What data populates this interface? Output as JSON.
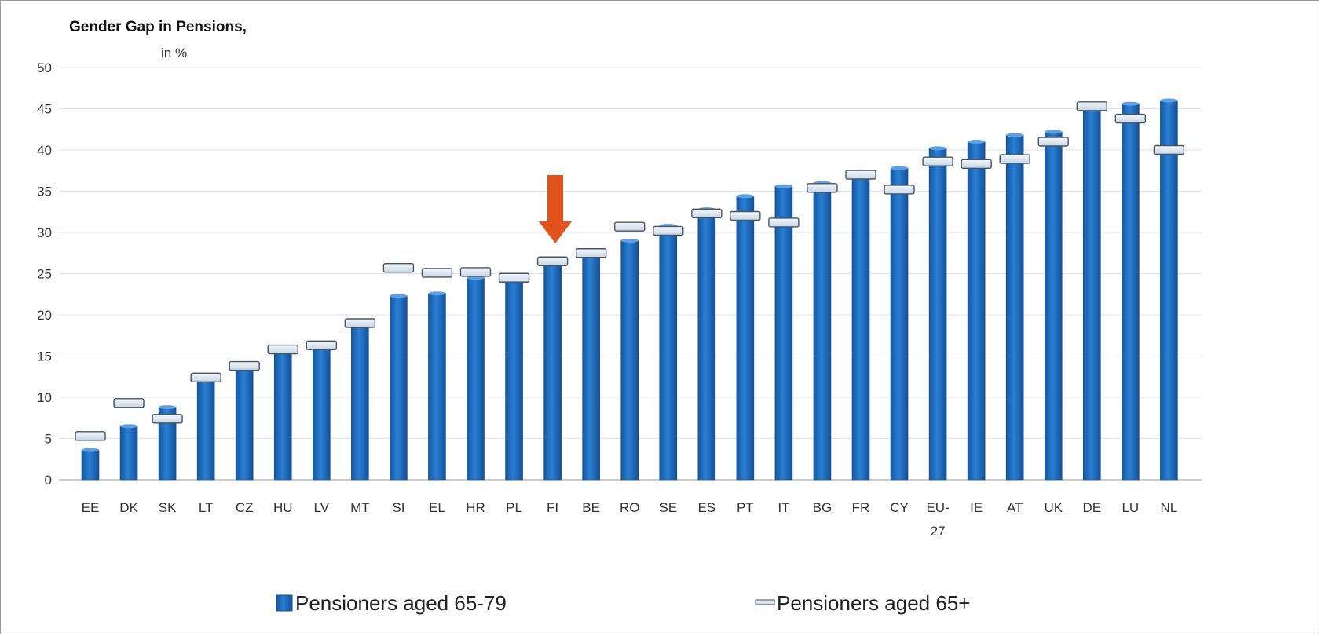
{
  "chart_data": {
    "type": "bar",
    "title": "Gender Gap in Pensions,",
    "ylabel": "in %",
    "ylim": [
      0,
      50
    ],
    "yticks": [
      0,
      5,
      10,
      15,
      20,
      25,
      30,
      35,
      40,
      45,
      50
    ],
    "grid": true,
    "legend_position": "bottom",
    "categories": [
      "EE",
      "DK",
      "SK",
      "LT",
      "CZ",
      "HU",
      "LV",
      "MT",
      "SI",
      "EL",
      "HR",
      "PL",
      "FI",
      "BE",
      "RO",
      "SE",
      "ES",
      "PT",
      "IT",
      "BG",
      "FR",
      "CY",
      "EU-27",
      "IE",
      "AT",
      "UK",
      "DE",
      "LU",
      "NL"
    ],
    "series": [
      {
        "name": "Pensioners aged 65-79",
        "type": "bar",
        "color": "#1f6fbf",
        "values": [
          3.6,
          6.5,
          8.8,
          12.2,
          14.0,
          15.7,
          16.3,
          19.0,
          22.3,
          22.6,
          24.5,
          24.6,
          26.6,
          27.6,
          29.0,
          30.8,
          32.8,
          34.4,
          35.6,
          36.0,
          37.4,
          37.8,
          40.2,
          41.0,
          41.8,
          42.2,
          45.5,
          45.6,
          46.0
        ]
      },
      {
        "name": "Pensioners aged 65+",
        "type": "marker",
        "color": "#dde8f4",
        "values": [
          5.3,
          9.3,
          7.4,
          12.4,
          13.8,
          15.8,
          16.3,
          19.0,
          25.7,
          25.1,
          25.2,
          24.5,
          26.5,
          27.5,
          30.7,
          30.2,
          32.3,
          32.0,
          31.2,
          35.4,
          37.0,
          35.2,
          38.6,
          38.3,
          38.9,
          41.0,
          45.3,
          43.8,
          40.0
        ]
      }
    ],
    "annotations": [
      {
        "type": "arrow",
        "target": "FI",
        "color": "#e2531b"
      }
    ]
  },
  "legend": {
    "bar_label": "Pensioners aged 65-79",
    "marker_label": "Pensioners aged 65+"
  }
}
